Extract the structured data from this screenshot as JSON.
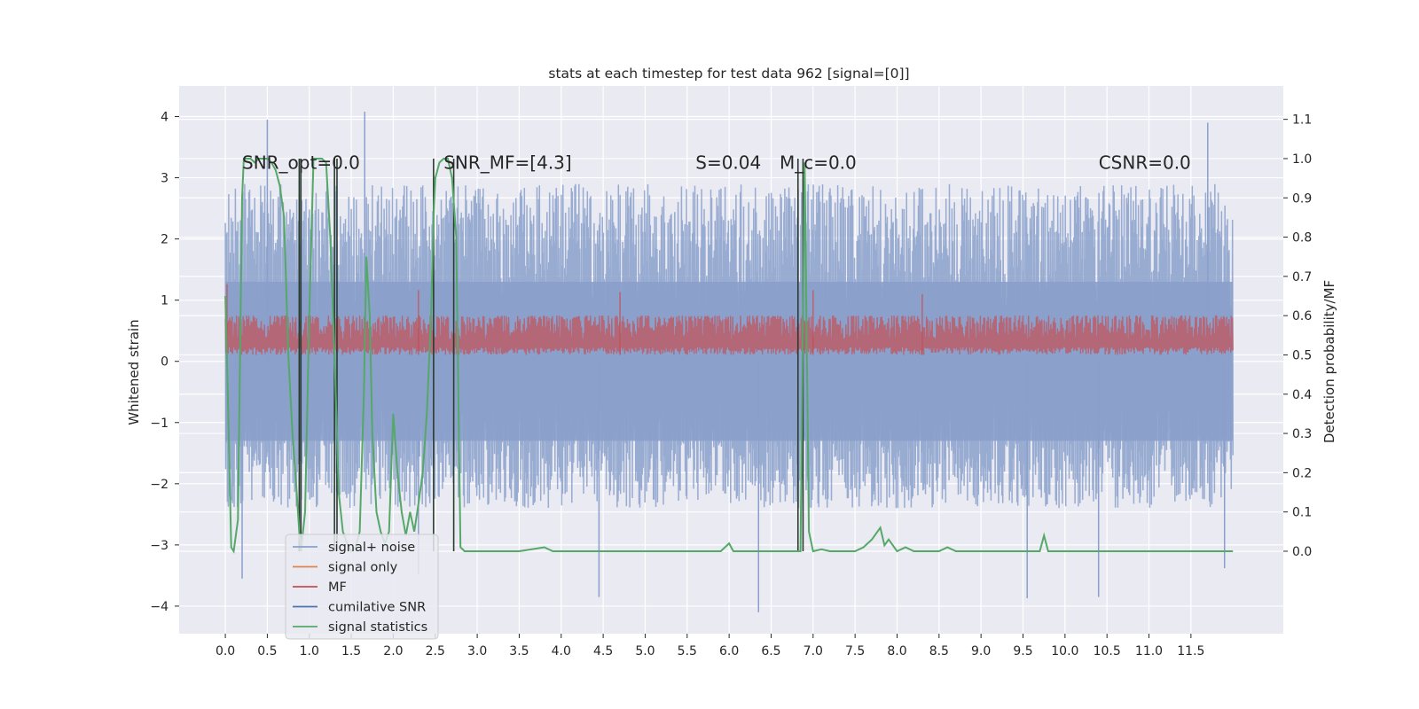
{
  "chart_data": {
    "type": "line",
    "title": "stats at each timestep for test data 962 [signal=[0]]",
    "xlabel": "",
    "ylabel": "Whitened strain",
    "y2label": "Detection probability/MF",
    "xlim": [
      -0.55,
      12.6
    ],
    "ylim": [
      -4.45,
      4.5
    ],
    "y2lim": [
      -0.21,
      1.185
    ],
    "x_ticks": [
      0.0,
      0.5,
      1.0,
      1.5,
      2.0,
      2.5,
      3.0,
      3.5,
      4.0,
      4.5,
      5.0,
      5.5,
      6.0,
      6.5,
      7.0,
      7.5,
      8.0,
      8.5,
      9.0,
      9.5,
      10.0,
      10.5,
      11.0,
      11.5
    ],
    "x_tick_labels": [
      "0.0",
      "0.5",
      "1.0",
      "1.5",
      "2.0",
      "2.5",
      "3.0",
      "3.5",
      "4.0",
      "4.5",
      "5.0",
      "5.5",
      "6.0",
      "6.5",
      "7.0",
      "7.5",
      "8.0",
      "8.5",
      "9.0",
      "9.5",
      "10.0",
      "10.5",
      "11.0",
      "11.5"
    ],
    "y_ticks": [
      -4,
      -3,
      -2,
      -1,
      0,
      1,
      2,
      3,
      4
    ],
    "y_tick_labels": [
      "−4",
      "−3",
      "−2",
      "−1",
      "0",
      "1",
      "2",
      "3",
      "4"
    ],
    "y2_ticks": [
      0.0,
      0.1,
      0.2,
      0.3,
      0.4,
      0.5,
      0.6,
      0.7,
      0.8,
      0.9,
      1.0,
      1.1
    ],
    "y2_tick_labels": [
      "0.0",
      "0.1",
      "0.2",
      "0.3",
      "0.4",
      "0.5",
      "0.6",
      "0.7",
      "0.8",
      "0.9",
      "1.0",
      "1.1"
    ],
    "grid": true,
    "legend_position": "lower-left",
    "legend": [
      {
        "label": "signal+ noise",
        "color": "#8aa0cb"
      },
      {
        "label": "signal only",
        "color": "#dd8452"
      },
      {
        "label": "MF",
        "color": "#c44e52"
      },
      {
        "label": "cumilative SNR",
        "color": "#4c72b0"
      },
      {
        "label": "signal statistics",
        "color": "#55a868"
      }
    ],
    "annotations": [
      {
        "text": "SNR_opt=0.0",
        "x": 0.2,
        "y": 3.25
      },
      {
        "text": "SNR_MF=[4.3]",
        "x": 2.6,
        "y": 3.25
      },
      {
        "text": "S=0.04",
        "x": 5.6,
        "y": 3.25
      },
      {
        "text": "M_c=0.0",
        "x": 6.6,
        "y": 3.25
      },
      {
        "text": "CSNR=0.0",
        "x": 10.4,
        "y": 3.25
      }
    ],
    "series": [
      {
        "name": "signal+ noise",
        "axis": "left",
        "color": "#8aa0cb",
        "x_range": [
          0.0,
          12.0
        ],
        "band_min": -2.4,
        "band_max": 2.9,
        "notable_extremes": [
          [
            0.5,
            3.95
          ],
          [
            1.66,
            4.08
          ],
          [
            0.2,
            -3.55
          ],
          [
            2.3,
            -3.48
          ],
          [
            4.45,
            -3.85
          ],
          [
            6.35,
            -4.1
          ],
          [
            9.55,
            -3.87
          ],
          [
            10.4,
            -3.85
          ],
          [
            11.7,
            3.9
          ],
          [
            11.9,
            -3.38
          ]
        ]
      },
      {
        "name": "MF",
        "axis": "right",
        "color": "#c44e52",
        "x_range": [
          0.0,
          12.0
        ],
        "band_min": 0.5,
        "band_max": 0.6,
        "peaks": [
          [
            0.02,
            0.68
          ],
          [
            2.3,
            0.665
          ],
          [
            4.7,
            0.66
          ],
          [
            7.0,
            0.665
          ],
          [
            8.3,
            0.655
          ]
        ]
      },
      {
        "name": "signal statistics",
        "axis": "right",
        "color": "#55a868",
        "x": [
          0.0,
          0.03,
          0.07,
          0.1,
          0.15,
          0.2,
          0.22,
          0.25,
          0.3,
          0.35,
          0.4,
          0.45,
          0.5,
          0.55,
          0.6,
          0.65,
          0.7,
          0.75,
          0.8,
          0.85,
          0.88,
          0.9,
          0.95,
          1.0,
          1.05,
          1.08,
          1.1,
          1.15,
          1.2,
          1.25,
          1.3,
          1.33,
          1.35,
          1.4,
          1.45,
          1.5,
          1.55,
          1.6,
          1.65,
          1.68,
          1.72,
          1.75,
          1.8,
          1.85,
          1.9,
          1.95,
          2.0,
          2.05,
          2.1,
          2.15,
          2.2,
          2.25,
          2.3,
          2.35,
          2.4,
          2.45,
          2.48,
          2.5,
          2.55,
          2.6,
          2.65,
          2.7,
          2.75,
          2.8,
          2.85,
          2.9,
          3.0,
          3.2,
          3.5,
          3.8,
          3.9,
          4.2,
          4.5,
          4.6,
          4.8,
          5.0,
          5.5,
          5.9,
          6.0,
          6.05,
          6.1,
          6.2,
          6.5,
          6.82,
          6.85,
          6.9,
          6.95,
          7.0,
          7.1,
          7.2,
          7.3,
          7.5,
          7.6,
          7.7,
          7.8,
          7.85,
          7.9,
          8.0,
          8.1,
          8.2,
          8.3,
          8.5,
          8.6,
          8.7,
          8.8,
          9.0,
          9.5,
          9.7,
          9.75,
          9.8,
          10.0,
          10.5,
          11.0,
          11.5,
          12.0
        ],
        "y": [
          0.65,
          0.4,
          0.01,
          0.0,
          0.08,
          0.9,
          1.0,
          1.0,
          1.0,
          0.99,
          1.0,
          1.0,
          1.0,
          0.99,
          0.97,
          0.93,
          0.85,
          0.5,
          0.3,
          0.15,
          0.05,
          0.0,
          0.1,
          0.6,
          1.0,
          1.0,
          1.0,
          1.0,
          0.99,
          0.8,
          0.5,
          0.3,
          0.15,
          0.05,
          0.02,
          0.0,
          0.01,
          0.05,
          0.4,
          0.75,
          0.6,
          0.3,
          0.1,
          0.05,
          0.02,
          0.05,
          0.35,
          0.2,
          0.1,
          0.04,
          0.1,
          0.05,
          0.12,
          0.2,
          0.35,
          0.6,
          0.85,
          0.95,
          0.99,
          1.0,
          1.0,
          0.95,
          0.8,
          0.01,
          0.0,
          0.0,
          0.0,
          0.0,
          0.0,
          0.01,
          0.0,
          0.0,
          0.0,
          0.0,
          0.0,
          0.0,
          0.0,
          0.0,
          0.02,
          0.0,
          0.0,
          0.0,
          0.0,
          0.0,
          0.0,
          0.99,
          0.05,
          0.0,
          0.005,
          0.0,
          0.0,
          0.0,
          0.01,
          0.03,
          0.06,
          0.015,
          0.03,
          0.0,
          0.01,
          0.0,
          0.0,
          0.0,
          0.01,
          0.0,
          0.0,
          0.0,
          0.0,
          0.0,
          0.04,
          0.0,
          0.0,
          0.0,
          0.0,
          0.0,
          0.0
        ]
      }
    ],
    "vertical_markers": [
      0.88,
      0.9,
      1.3,
      1.33,
      2.48,
      2.72,
      6.82,
      6.88
    ]
  }
}
